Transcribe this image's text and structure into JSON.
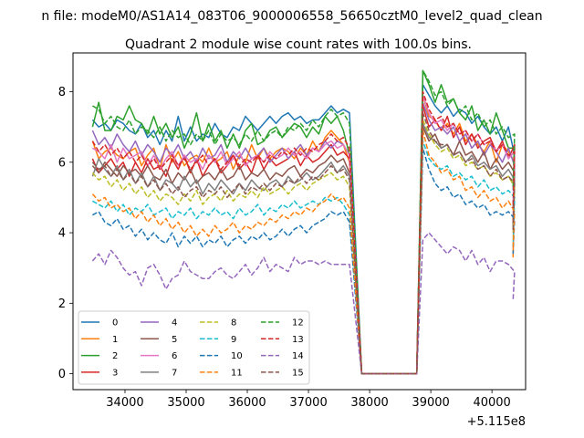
{
  "figure": {
    "suptitle": "n file: modeM0/AS1A14_083T06_9000006558_56650cztM0_level2_quad_clean",
    "offset_text": "+5.115e8"
  },
  "chart_data": {
    "type": "line",
    "title": "Quadrant 2 module wise count rates with 100.0s bins.",
    "xlabel": "",
    "ylabel": "",
    "xlim": [
      33150,
      40550
    ],
    "ylim": [
      -0.45,
      9.1
    ],
    "x_offset": 511500000,
    "xticks": [
      34000,
      35000,
      36000,
      37000,
      38000,
      39000,
      40000
    ],
    "yticks": [
      0,
      2,
      4,
      6,
      8
    ],
    "grid": false,
    "legend_position": "lower-left",
    "legend_columns": 4,
    "x_start": 33470,
    "x_step": 100,
    "gap_x": [
      37870,
      38770
    ],
    "x_end": 40345,
    "colors": [
      "#1f77b4",
      "#ff7f0e",
      "#2ca02c",
      "#d62728",
      "#9467bd",
      "#8c564b",
      "#e377c2",
      "#7f7f7f",
      "#bcbd22",
      "#17becf"
    ],
    "series": [
      {
        "name": "0",
        "style": "solid",
        "color": "#1f77b4",
        "pre": [
          7.2,
          7.0,
          7.1,
          6.9,
          7.2,
          7.1,
          6.9,
          6.8,
          7.1,
          6.7,
          6.9,
          6.5,
          6.9,
          6.6,
          7.3,
          6.6,
          7.0,
          6.6,
          6.8,
          6.7,
          7.1,
          6.8,
          6.7,
          7.0,
          6.9,
          7.3,
          7.1,
          6.9,
          7.1,
          7.3,
          7.1,
          7.3,
          7.4,
          7.2,
          7.3,
          7.1,
          7.2,
          7.2,
          7.4,
          7.6,
          7.4,
          7.5,
          7.4
        ],
        "post": [
          8.2,
          7.9,
          7.6,
          7.4,
          7.6,
          7.3,
          7.5,
          7.4,
          7.1,
          7.3,
          7.0,
          6.8,
          7.0,
          6.6,
          7.0,
          6.2,
          5.2
        ]
      },
      {
        "name": "1",
        "style": "solid",
        "color": "#ff7f0e",
        "pre": [
          6.6,
          6.1,
          6.3,
          6.4,
          6.2,
          6.1,
          6.3,
          6.4,
          5.9,
          6.2,
          6.4,
          5.8,
          6.5,
          6.0,
          6.3,
          5.9,
          6.1,
          6.2,
          6.0,
          6.4,
          6.0,
          6.1,
          6.3,
          5.8,
          6.2,
          6.0,
          6.5,
          6.1,
          6.4,
          6.1,
          6.3,
          6.4,
          6.3,
          6.1,
          6.4,
          6.2,
          6.6,
          6.3,
          6.7,
          6.9,
          6.7,
          6.5,
          6.0
        ],
        "post": [
          7.9,
          7.3,
          7.2,
          6.9,
          7.1,
          6.8,
          7.1,
          6.6,
          6.8,
          6.5,
          6.3,
          6.6,
          6.0,
          6.5,
          6.3,
          6.0,
          3.3
        ]
      },
      {
        "name": "2",
        "style": "solid",
        "color": "#2ca02c",
        "pre": [
          7.0,
          7.7,
          6.9,
          6.9,
          7.3,
          7.2,
          7.6,
          7.2,
          7.1,
          6.8,
          7.3,
          6.8,
          7.1,
          6.7,
          7.0,
          6.4,
          6.8,
          7.4,
          6.6,
          7.1,
          6.6,
          6.9,
          6.4,
          6.8,
          6.4,
          6.9,
          7.1,
          6.5,
          6.6,
          6.9,
          7.0,
          6.7,
          6.9,
          7.1,
          7.0,
          6.7,
          7.0,
          6.8,
          7.3,
          7.1,
          7.3,
          6.9,
          6.2
        ],
        "post": [
          8.6,
          8.2,
          7.7,
          8.2,
          7.7,
          7.8,
          7.4,
          7.2,
          7.6,
          6.9,
          7.2,
          6.8,
          7.4,
          6.9,
          6.4,
          6.4,
          5.4
        ]
      },
      {
        "name": "3",
        "style": "solid",
        "color": "#d62728",
        "pre": [
          6.1,
          5.7,
          5.9,
          6.1,
          5.8,
          6.0,
          5.6,
          6.0,
          5.7,
          6.1,
          5.8,
          5.9,
          5.6,
          6.1,
          5.8,
          6.2,
          5.7,
          6.1,
          5.6,
          5.9,
          6.1,
          5.7,
          5.9,
          6.2,
          5.8,
          6.0,
          5.7,
          6.2,
          5.8,
          6.1,
          5.9,
          6.0,
          6.1,
          6.3,
          5.9,
          6.2,
          6.0,
          6.1,
          6.3,
          6.5,
          6.2,
          6.3,
          6.1
        ],
        "post": [
          7.6,
          7.0,
          7.2,
          6.9,
          7.3,
          6.7,
          7.0,
          6.5,
          6.8,
          6.4,
          6.6,
          6.7,
          6.3,
          6.6,
          6.1,
          6.5,
          4.2
        ]
      },
      {
        "name": "4",
        "style": "solid",
        "color": "#9467bd",
        "pre": [
          6.9,
          6.5,
          6.7,
          6.4,
          6.8,
          6.5,
          6.3,
          6.6,
          6.2,
          6.5,
          6.3,
          6.0,
          6.4,
          6.2,
          6.5,
          6.1,
          6.3,
          6.0,
          6.4,
          6.1,
          6.2,
          6.5,
          6.0,
          6.3,
          6.1,
          6.4,
          6.1,
          6.2,
          6.4,
          6.0,
          6.2,
          6.4,
          6.1,
          6.3,
          6.5,
          6.2,
          6.4,
          6.3,
          6.6,
          6.4,
          6.6,
          6.5,
          6.2
        ],
        "post": [
          7.7,
          7.2,
          6.9,
          7.0,
          6.8,
          7.0,
          6.6,
          6.8,
          6.4,
          6.6,
          6.2,
          6.5,
          6.3,
          6.0,
          6.4,
          5.9,
          4.7
        ]
      },
      {
        "name": "5",
        "style": "solid",
        "color": "#8c564b",
        "pre": [
          5.9,
          5.7,
          6.0,
          5.8,
          5.6,
          5.9,
          5.7,
          5.8,
          5.6,
          5.9,
          5.6,
          5.5,
          5.8,
          5.4,
          5.7,
          5.5,
          5.8,
          5.4,
          5.6,
          5.7,
          5.5,
          5.8,
          5.5,
          5.6,
          5.9,
          5.5,
          5.7,
          5.6,
          5.8,
          5.5,
          5.7,
          5.6,
          5.8,
          5.9,
          5.6,
          5.8,
          5.7,
          5.9,
          6.0,
          6.2,
          6.0,
          6.1,
          5.7
        ],
        "post": [
          7.0,
          6.6,
          6.8,
          6.4,
          6.5,
          6.2,
          6.6,
          6.2,
          6.3,
          6.0,
          6.3,
          5.8,
          6.1,
          5.8,
          6.0,
          5.7,
          4.2
        ]
      },
      {
        "name": "6",
        "style": "solid",
        "color": "#e377c2",
        "pre": [
          6.4,
          6.3,
          6.1,
          6.5,
          6.0,
          6.4,
          6.1,
          6.2,
          6.3,
          5.9,
          6.2,
          5.8,
          6.1,
          6.3,
          5.9,
          6.2,
          6.0,
          6.1,
          5.8,
          6.2,
          6.0,
          6.3,
          5.9,
          6.1,
          6.3,
          5.9,
          6.1,
          6.2,
          6.0,
          6.3,
          6.1,
          6.2,
          6.4,
          6.2,
          6.3,
          6.1,
          6.4,
          6.3,
          6.5,
          6.6,
          6.4,
          6.5,
          6.2
        ],
        "post": [
          7.9,
          7.4,
          7.1,
          7.2,
          6.9,
          7.1,
          6.8,
          6.9,
          6.6,
          6.8,
          6.5,
          6.6,
          6.3,
          6.5,
          6.1,
          6.3,
          4.8
        ]
      },
      {
        "name": "7",
        "style": "solid",
        "color": "#7f7f7f",
        "pre": [
          5.6,
          6.1,
          5.8,
          5.6,
          5.9,
          5.5,
          5.8,
          5.4,
          5.7,
          5.3,
          5.6,
          5.2,
          5.5,
          5.4,
          5.2,
          5.6,
          5.3,
          5.5,
          5.1,
          5.4,
          5.2,
          5.5,
          5.3,
          5.1,
          5.4,
          5.2,
          5.5,
          5.3,
          5.2,
          5.4,
          5.5,
          5.3,
          5.6,
          5.4,
          5.5,
          5.7,
          5.5,
          5.6,
          5.8,
          6.0,
          5.7,
          5.9,
          5.6
        ],
        "post": [
          7.1,
          6.7,
          6.6,
          6.4,
          6.5,
          6.2,
          6.3,
          6.0,
          6.2,
          5.9,
          6.0,
          5.8,
          5.9,
          5.6,
          5.8,
          5.5,
          4.1
        ]
      },
      {
        "name": "8",
        "style": "dashed",
        "color": "#bcbd22",
        "pre": [
          5.7,
          5.5,
          5.6,
          5.3,
          5.5,
          5.2,
          5.4,
          5.1,
          5.3,
          5.0,
          5.2,
          4.9,
          5.1,
          5.0,
          4.8,
          5.1,
          4.9,
          5.2,
          4.8,
          5.0,
          5.1,
          4.9,
          5.2,
          4.9,
          5.1,
          5.0,
          5.2,
          5.0,
          5.3,
          5.1,
          5.2,
          5.3,
          5.1,
          5.3,
          5.4,
          5.2,
          5.4,
          5.5,
          5.6,
          5.7,
          5.5,
          5.6,
          5.3
        ],
        "post": [
          7.2,
          6.8,
          6.5,
          6.3,
          6.4,
          6.1,
          6.2,
          5.9,
          6.0,
          5.8,
          5.9,
          5.6,
          5.7,
          5.5,
          5.6,
          5.3,
          3.9
        ]
      },
      {
        "name": "9",
        "style": "dashed",
        "color": "#17becf",
        "pre": [
          4.9,
          4.8,
          4.7,
          4.9,
          4.6,
          4.8,
          4.5,
          4.7,
          4.6,
          4.8,
          4.5,
          4.6,
          4.7,
          4.4,
          4.6,
          4.5,
          4.7,
          4.4,
          4.6,
          4.5,
          4.7,
          4.5,
          4.6,
          4.4,
          4.7,
          4.5,
          4.6,
          4.8,
          4.5,
          4.7,
          4.6,
          4.8,
          4.7,
          4.9,
          4.7,
          4.8,
          4.9,
          4.8,
          5.0,
          4.9,
          5.0,
          4.8,
          4.5
        ],
        "post": [
          6.6,
          6.1,
          5.9,
          5.8,
          5.9,
          5.6,
          5.7,
          5.5,
          5.6,
          5.3,
          5.5,
          5.2,
          5.3,
          5.1,
          5.2,
          5.0,
          3.6
        ]
      },
      {
        "name": "10",
        "style": "dashed",
        "color": "#1f77b4",
        "pre": [
          4.5,
          4.6,
          4.3,
          4.2,
          4.4,
          4.1,
          4.2,
          3.9,
          4.1,
          3.8,
          4.0,
          3.8,
          3.7,
          4.0,
          3.6,
          3.9,
          3.7,
          3.9,
          3.6,
          3.8,
          3.7,
          3.9,
          3.6,
          3.8,
          3.9,
          3.7,
          3.9,
          3.8,
          4.0,
          3.8,
          3.9,
          4.1,
          3.9,
          4.1,
          4.2,
          4.0,
          4.2,
          4.3,
          4.4,
          4.6,
          4.5,
          4.6,
          4.3
        ],
        "post": [
          6.4,
          5.8,
          5.4,
          5.2,
          5.3,
          5.0,
          5.1,
          4.8,
          4.9,
          4.7,
          4.8,
          4.5,
          4.6,
          4.5,
          4.6,
          4.4,
          3.4
        ]
      },
      {
        "name": "11",
        "style": "dashed",
        "color": "#ff7f0e",
        "pre": [
          5.1,
          4.9,
          5.0,
          4.7,
          4.8,
          4.6,
          4.7,
          4.4,
          4.6,
          4.3,
          4.5,
          4.2,
          4.4,
          4.1,
          4.3,
          4.0,
          4.2,
          3.9,
          4.1,
          3.9,
          4.2,
          4.0,
          4.1,
          4.3,
          4.0,
          4.2,
          4.1,
          4.3,
          4.2,
          4.4,
          4.3,
          4.5,
          4.4,
          4.6,
          4.5,
          4.7,
          4.6,
          4.8,
          4.9,
          5.1,
          4.9,
          5.0,
          4.7
        ],
        "post": [
          6.9,
          6.2,
          6.0,
          5.7,
          5.8,
          5.5,
          5.6,
          5.2,
          5.3,
          5.0,
          5.2,
          4.9,
          5.0,
          4.7,
          4.9,
          4.6,
          3.5
        ]
      },
      {
        "name": "12",
        "style": "dashed",
        "color": "#2ca02c",
        "pre": [
          7.6,
          7.5,
          7.1,
          7.3,
          7.0,
          6.9,
          7.2,
          6.8,
          7.0,
          6.9,
          6.7,
          7.0,
          6.6,
          6.9,
          6.7,
          6.8,
          6.5,
          6.8,
          6.6,
          6.9,
          6.5,
          6.8,
          6.6,
          6.7,
          6.5,
          6.8,
          6.6,
          6.9,
          6.6,
          6.8,
          6.9,
          6.7,
          7.0,
          6.9,
          7.1,
          6.9,
          7.2,
          7.0,
          7.3,
          7.5,
          7.3,
          7.4,
          7.1
        ],
        "post": [
          8.6,
          8.3,
          7.9,
          8.0,
          7.6,
          7.8,
          7.4,
          7.6,
          7.2,
          7.4,
          7.0,
          7.2,
          6.8,
          7.0,
          6.7,
          6.8,
          5.3
        ]
      },
      {
        "name": "13",
        "style": "dashed",
        "color": "#d62728",
        "pre": [
          6.6,
          6.3,
          6.5,
          6.2,
          6.4,
          6.1,
          6.3,
          6.0,
          6.2,
          5.9,
          6.1,
          5.8,
          6.0,
          6.2,
          5.9,
          6.1,
          5.8,
          6.0,
          6.2,
          5.9,
          6.1,
          5.8,
          6.0,
          6.2,
          5.9,
          6.1,
          6.0,
          6.2,
          6.0,
          6.2,
          6.1,
          6.3,
          6.2,
          6.4,
          6.2,
          6.4,
          6.3,
          6.5,
          6.6,
          6.8,
          6.6,
          6.7,
          6.4
        ],
        "post": [
          8.0,
          7.5,
          7.2,
          7.3,
          7.0,
          7.1,
          6.8,
          6.9,
          6.6,
          6.8,
          6.5,
          6.6,
          6.3,
          6.5,
          6.2,
          6.3,
          4.7
        ]
      },
      {
        "name": "14",
        "style": "dashed",
        "color": "#9467bd",
        "pre": [
          3.2,
          3.4,
          3.1,
          3.5,
          3.3,
          3.0,
          2.8,
          2.9,
          2.5,
          3.0,
          3.1,
          2.8,
          2.4,
          2.7,
          2.8,
          3.2,
          2.9,
          2.8,
          2.7,
          2.7,
          2.9,
          3.0,
          2.8,
          2.7,
          2.9,
          3.1,
          2.8,
          3.0,
          3.3,
          2.9,
          3.1,
          3.0,
          2.9,
          3.3,
          3.1,
          3.2,
          3.2,
          3.1,
          3.2,
          3.1,
          3.1,
          3.1,
          3.1
        ],
        "post": [
          3.8,
          4.0,
          3.8,
          3.6,
          3.4,
          3.6,
          3.5,
          3.2,
          3.5,
          3.1,
          3.3,
          2.9,
          3.2,
          3.2,
          3.1,
          2.9,
          2.1
        ]
      },
      {
        "name": "15",
        "style": "dashed",
        "color": "#8c564b",
        "pre": [
          6.0,
          5.8,
          5.9,
          5.6,
          5.8,
          5.5,
          5.7,
          5.4,
          5.6,
          5.3,
          5.5,
          5.2,
          5.4,
          5.1,
          5.3,
          5.0,
          5.2,
          5.3,
          5.0,
          5.2,
          5.1,
          5.3,
          5.0,
          5.2,
          5.4,
          5.1,
          5.3,
          5.2,
          5.4,
          5.2,
          5.4,
          5.3,
          5.5,
          5.4,
          5.6,
          5.4,
          5.6,
          5.5,
          5.7,
          5.9,
          5.7,
          5.8,
          5.5
        ],
        "post": [
          7.4,
          6.9,
          6.6,
          6.5,
          6.5,
          6.2,
          6.3,
          6.0,
          6.1,
          5.8,
          5.9,
          5.6,
          5.8,
          5.5,
          5.6,
          5.4,
          4.0
        ]
      }
    ]
  }
}
